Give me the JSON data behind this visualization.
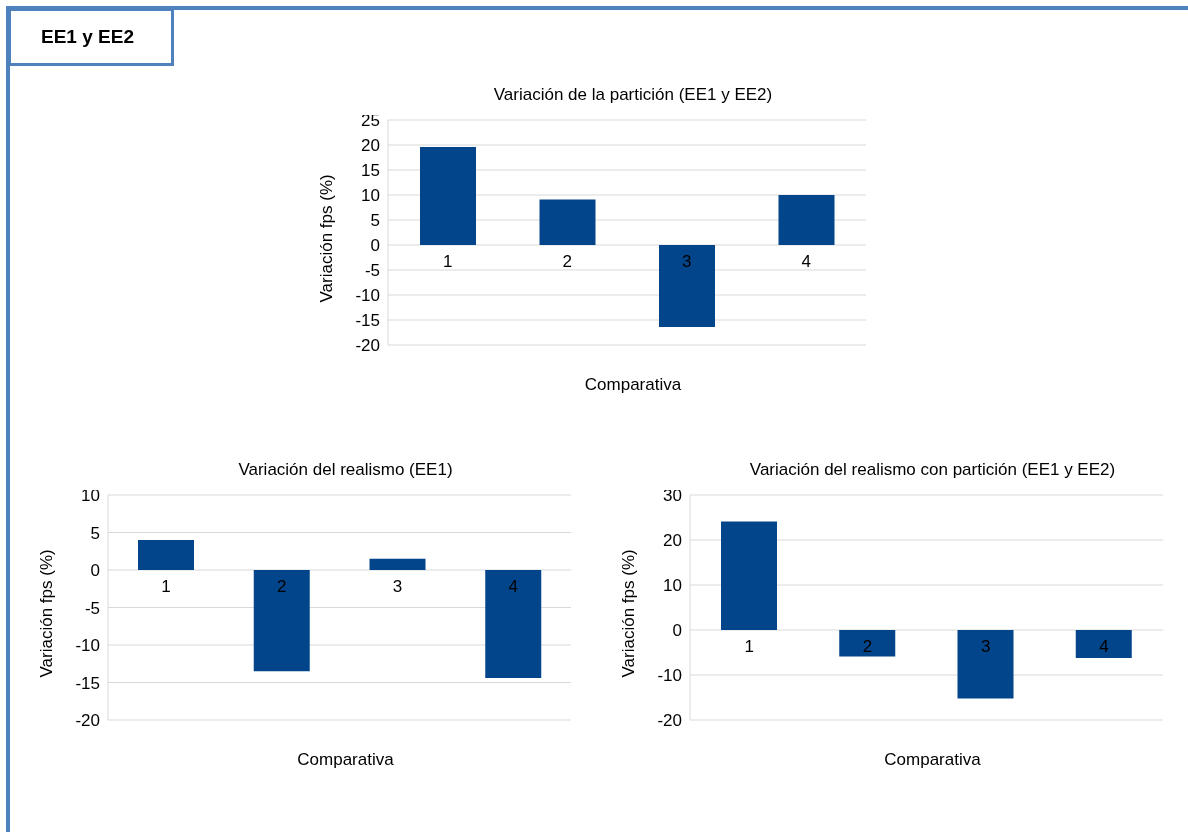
{
  "chart_data": [
    {
      "type": "bar",
      "title": "Variación de la partición (EE1 y EE2)",
      "xlabel": "Comparativa",
      "ylabel": "Variación fps (%)",
      "annotations": [
        "EE1 y EE2"
      ],
      "categories": [
        "1",
        "2",
        "3",
        "4"
      ],
      "values": [
        19.6,
        9.1,
        -16.4,
        10.0
      ],
      "color": "#02458a",
      "ylim": [
        -20,
        25
      ],
      "yticks": [
        -20,
        -15,
        -10,
        -5,
        0,
        5,
        10,
        15,
        20,
        25
      ],
      "grid": "y"
    },
    {
      "type": "bar",
      "title": "Variación del realismo (EE1)",
      "xlabel": "Comparativa",
      "ylabel": "Variación fps (%)",
      "categories": [
        "1",
        "2",
        "3",
        "4"
      ],
      "values": [
        4.0,
        -13.5,
        1.5,
        -14.4
      ],
      "color": "#02458a",
      "ylim": [
        -20,
        10
      ],
      "yticks": [
        -20,
        -15,
        -10,
        -5,
        0,
        5,
        10
      ],
      "grid": "y"
    },
    {
      "type": "bar",
      "title": "Variación del realismo con partición (EE1 y EE2)",
      "xlabel": "Comparativa",
      "ylabel": "Variación fps (%)",
      "categories": [
        "1",
        "2",
        "3",
        "4"
      ],
      "values": [
        24.1,
        -5.9,
        -15.2,
        -6.2
      ],
      "color": "#02458a",
      "ylim": [
        -20,
        30
      ],
      "yticks": [
        -20,
        -10,
        0,
        10,
        20,
        30
      ],
      "grid": "y"
    }
  ]
}
